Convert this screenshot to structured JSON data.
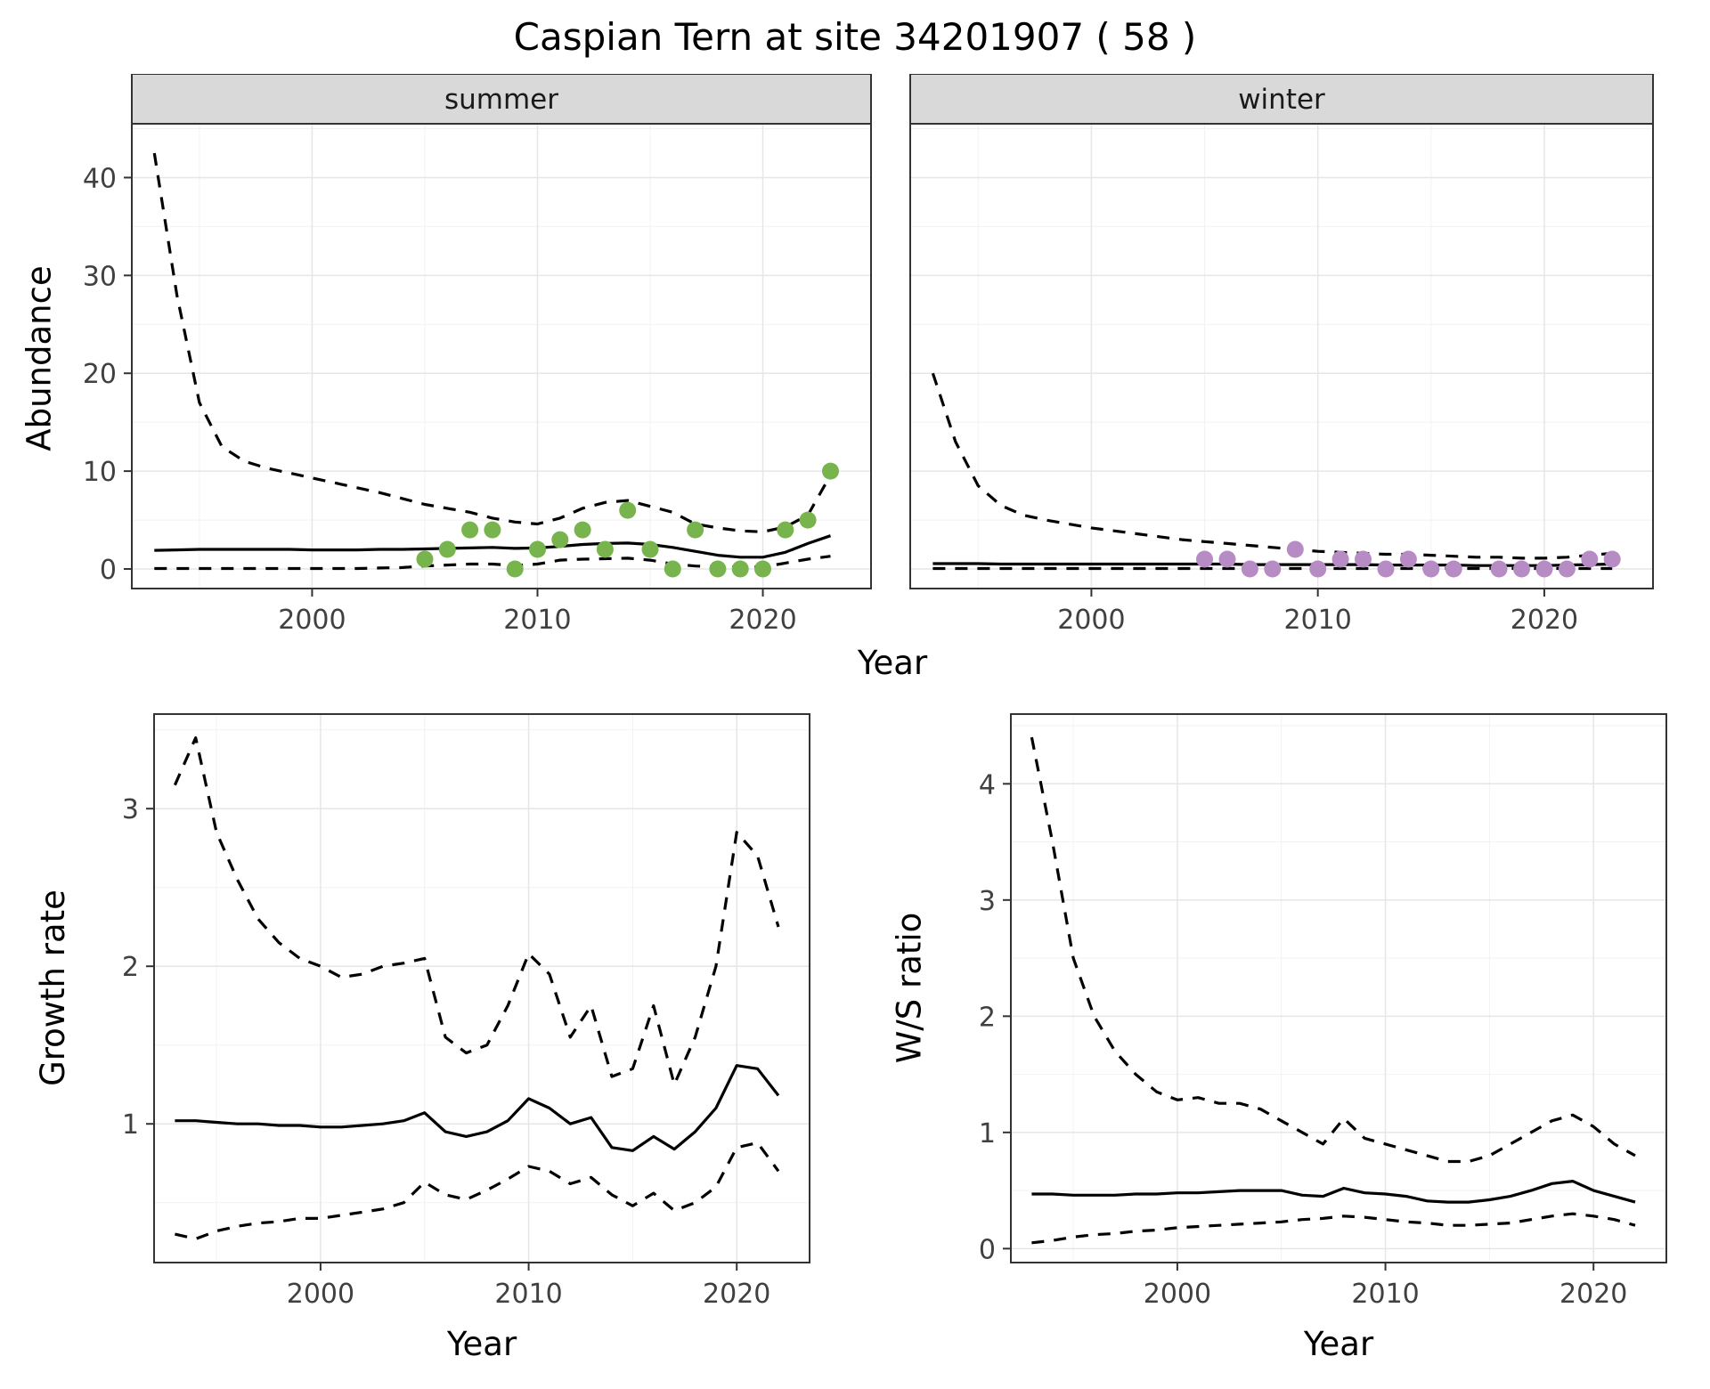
{
  "title": "Caspian Tern at site 34201907 ( 58 )",
  "colors": {
    "summer_points": "#78b44e",
    "winter_points": "#b78bc4",
    "line": "#000000",
    "strip_bg": "#d9d9d9",
    "strip_text": "#1a1a1a",
    "panel_border": "#333333",
    "grid_major": "#e6e6e6",
    "grid_minor": "#f2f2f2",
    "tick_text": "#404040"
  },
  "chart_data": [
    {
      "id": "abundance-summer",
      "type": "line",
      "facet_label": "summer",
      "title": "",
      "xlabel": "Year",
      "ylabel": "Abundance",
      "xlim": [
        1992,
        2024.8
      ],
      "ylim": [
        -2,
        45.5
      ],
      "xticks": [
        2000,
        2010,
        2020
      ],
      "yticks": [
        0,
        10,
        20,
        30,
        40
      ],
      "xminor": [
        1995,
        2005,
        2015
      ],
      "yminor": [
        5,
        15,
        25,
        35,
        45
      ],
      "show_y_axis": true,
      "x": [
        1993,
        1994,
        1995,
        1996,
        1997,
        1998,
        1999,
        2000,
        2001,
        2002,
        2003,
        2004,
        2005,
        2006,
        2007,
        2008,
        2009,
        2010,
        2011,
        2012,
        2013,
        2014,
        2015,
        2016,
        2017,
        2018,
        2019,
        2020,
        2021,
        2022,
        2023
      ],
      "series": [
        {
          "name": "upper_95ci",
          "style": "dashed",
          "y": [
            42.5,
            28,
            17,
            12.5,
            11,
            10.3,
            9.8,
            9.3,
            8.8,
            8.3,
            7.8,
            7.2,
            6.6,
            6.2,
            5.8,
            5.2,
            4.8,
            4.6,
            5.2,
            6.2,
            6.8,
            7,
            6.4,
            5.8,
            4.6,
            4.2,
            3.9,
            3.8,
            4.3,
            5.5,
            9.6
          ]
        },
        {
          "name": "median",
          "style": "solid",
          "y": [
            1.9,
            1.95,
            2,
            2,
            2,
            2,
            2,
            1.95,
            1.95,
            1.95,
            2,
            2,
            2.05,
            2.1,
            2.15,
            2.2,
            2.1,
            2.15,
            2.3,
            2.5,
            2.6,
            2.65,
            2.5,
            2.2,
            1.8,
            1.4,
            1.2,
            1.2,
            1.7,
            2.6,
            3.4
          ]
        },
        {
          "name": "lower_95ci",
          "style": "dashed",
          "y": [
            0.05,
            0.05,
            0.05,
            0.05,
            0.05,
            0.05,
            0.05,
            0.05,
            0.05,
            0.05,
            0.1,
            0.15,
            0.3,
            0.4,
            0.5,
            0.5,
            0.35,
            0.5,
            0.9,
            1,
            1.05,
            1.1,
            0.9,
            0.5,
            0.3,
            0.2,
            0.2,
            0.2,
            0.6,
            1,
            1.3
          ]
        }
      ],
      "points": {
        "name": "observed_counts",
        "color_key": "summer_points",
        "x": [
          2005,
          2006,
          2007,
          2008,
          2009,
          2010,
          2011,
          2012,
          2013,
          2014,
          2015,
          2016,
          2017,
          2018,
          2019,
          2020,
          2021,
          2022,
          2023
        ],
        "y": [
          1,
          2,
          4,
          4,
          0,
          2,
          3,
          4,
          2,
          6,
          2,
          0,
          4,
          0,
          0,
          0,
          4,
          5,
          10
        ]
      }
    },
    {
      "id": "abundance-winter",
      "type": "line",
      "facet_label": "winter",
      "title": "",
      "xlabel": "Year",
      "ylabel": "Abundance",
      "xlim": [
        1992,
        2024.8
      ],
      "ylim": [
        -2,
        45.5
      ],
      "xticks": [
        2000,
        2010,
        2020
      ],
      "yticks": [
        0,
        10,
        20,
        30,
        40
      ],
      "xminor": [
        1995,
        2005,
        2015
      ],
      "yminor": [
        5,
        15,
        25,
        35,
        45
      ],
      "show_y_axis": false,
      "x": [
        1993,
        1994,
        1995,
        1996,
        1997,
        1998,
        1999,
        2000,
        2001,
        2002,
        2003,
        2004,
        2005,
        2006,
        2007,
        2008,
        2009,
        2010,
        2011,
        2012,
        2013,
        2014,
        2015,
        2016,
        2017,
        2018,
        2019,
        2020,
        2021,
        2022,
        2023
      ],
      "series": [
        {
          "name": "upper_95ci",
          "style": "dashed",
          "y": [
            20,
            13,
            8.5,
            6.5,
            5.5,
            5,
            4.6,
            4.2,
            3.9,
            3.6,
            3.3,
            3,
            2.8,
            2.6,
            2.4,
            2.2,
            2,
            1.8,
            1.7,
            1.6,
            1.5,
            1.5,
            1.4,
            1.3,
            1.2,
            1.2,
            1.1,
            1.1,
            1.2,
            1.4,
            1.6
          ]
        },
        {
          "name": "median",
          "style": "solid",
          "y": [
            0.55,
            0.55,
            0.55,
            0.5,
            0.5,
            0.5,
            0.5,
            0.5,
            0.5,
            0.5,
            0.5,
            0.5,
            0.5,
            0.5,
            0.45,
            0.45,
            0.45,
            0.45,
            0.45,
            0.45,
            0.4,
            0.4,
            0.4,
            0.4,
            0.35,
            0.35,
            0.35,
            0.35,
            0.4,
            0.45,
            0.5
          ]
        },
        {
          "name": "lower_95ci",
          "style": "dashed",
          "y": [
            0.05,
            0.05,
            0.05,
            0.05,
            0.05,
            0.05,
            0.05,
            0.05,
            0.05,
            0.05,
            0.05,
            0.05,
            0.05,
            0.05,
            0.05,
            0.05,
            0.05,
            0.05,
            0.05,
            0.05,
            0.05,
            0.05,
            0.05,
            0.05,
            0.05,
            0.05,
            0.05,
            0.05,
            0.05,
            0.05,
            0.05
          ]
        }
      ],
      "points": {
        "name": "observed_counts",
        "color_key": "winter_points",
        "x": [
          2005,
          2006,
          2007,
          2008,
          2009,
          2010,
          2011,
          2012,
          2013,
          2014,
          2015,
          2016,
          2018,
          2019,
          2020,
          2021,
          2022,
          2023
        ],
        "y": [
          1,
          1,
          0,
          0,
          2,
          0,
          1,
          1,
          0,
          1,
          0,
          0,
          0,
          0,
          0,
          0,
          1,
          1
        ]
      }
    },
    {
      "id": "growth-rate",
      "type": "line",
      "facet_label": "",
      "title": "",
      "xlabel": "Year",
      "ylabel": "Growth rate",
      "xlim": [
        1992,
        2023.5
      ],
      "ylim": [
        0.12,
        3.6
      ],
      "xticks": [
        2000,
        2010,
        2020
      ],
      "yticks": [
        1,
        2,
        3
      ],
      "xminor": [
        1995,
        2005,
        2015
      ],
      "yminor": [
        0.5,
        1.5,
        2.5,
        3.5
      ],
      "show_y_axis": true,
      "x": [
        1993,
        1994,
        1995,
        1996,
        1997,
        1998,
        1999,
        2000,
        2001,
        2002,
        2003,
        2004,
        2005,
        2006,
        2007,
        2008,
        2009,
        2010,
        2011,
        2012,
        2013,
        2014,
        2015,
        2016,
        2017,
        2018,
        2019,
        2020,
        2021,
        2022
      ],
      "series": [
        {
          "name": "upper_95ci",
          "style": "dashed",
          "y": [
            3.15,
            3.45,
            2.85,
            2.55,
            2.3,
            2.15,
            2.05,
            2,
            1.93,
            1.95,
            2,
            2.02,
            2.05,
            1.55,
            1.45,
            1.5,
            1.75,
            2.08,
            1.95,
            1.55,
            1.75,
            1.3,
            1.35,
            1.75,
            1.25,
            1.55,
            2,
            2.85,
            2.7,
            2.25
          ]
        },
        {
          "name": "median",
          "style": "solid",
          "y": [
            1.02,
            1.02,
            1.01,
            1,
            1,
            0.99,
            0.99,
            0.98,
            0.98,
            0.99,
            1,
            1.02,
            1.07,
            0.95,
            0.92,
            0.95,
            1.02,
            1.16,
            1.1,
            1,
            1.04,
            0.85,
            0.83,
            0.92,
            0.84,
            0.95,
            1.1,
            1.37,
            1.35,
            1.18
          ]
        },
        {
          "name": "lower_95ci",
          "style": "dashed",
          "y": [
            0.3,
            0.27,
            0.32,
            0.35,
            0.37,
            0.38,
            0.4,
            0.4,
            0.42,
            0.44,
            0.46,
            0.5,
            0.63,
            0.55,
            0.52,
            0.58,
            0.65,
            0.73,
            0.7,
            0.62,
            0.66,
            0.55,
            0.48,
            0.56,
            0.45,
            0.5,
            0.6,
            0.85,
            0.88,
            0.7
          ]
        }
      ]
    },
    {
      "id": "ws-ratio",
      "type": "line",
      "facet_label": "",
      "title": "",
      "xlabel": "Year",
      "ylabel": "W/S ratio",
      "xlim": [
        1992,
        2023.5
      ],
      "ylim": [
        -0.12,
        4.6
      ],
      "xticks": [
        2000,
        2010,
        2020
      ],
      "yticks": [
        0,
        1,
        2,
        3,
        4
      ],
      "xminor": [
        1995,
        2005,
        2015
      ],
      "yminor": [
        0.5,
        1.5,
        2.5,
        3.5,
        4.5
      ],
      "show_y_axis": true,
      "x": [
        1993,
        1994,
        1995,
        1996,
        1997,
        1998,
        1999,
        2000,
        2001,
        2002,
        2003,
        2004,
        2005,
        2006,
        2007,
        2008,
        2009,
        2010,
        2011,
        2012,
        2013,
        2014,
        2015,
        2016,
        2017,
        2018,
        2019,
        2020,
        2021,
        2022
      ],
      "series": [
        {
          "name": "upper_95ci",
          "style": "dashed",
          "y": [
            4.4,
            3.5,
            2.5,
            2,
            1.7,
            1.5,
            1.35,
            1.28,
            1.3,
            1.25,
            1.25,
            1.2,
            1.1,
            1,
            0.9,
            1.12,
            0.95,
            0.9,
            0.85,
            0.8,
            0.75,
            0.75,
            0.8,
            0.9,
            1,
            1.1,
            1.15,
            1.05,
            0.9,
            0.8
          ]
        },
        {
          "name": "median",
          "style": "solid",
          "y": [
            0.47,
            0.47,
            0.46,
            0.46,
            0.46,
            0.47,
            0.47,
            0.48,
            0.48,
            0.49,
            0.5,
            0.5,
            0.5,
            0.46,
            0.45,
            0.52,
            0.48,
            0.47,
            0.45,
            0.41,
            0.4,
            0.4,
            0.42,
            0.45,
            0.5,
            0.56,
            0.58,
            0.5,
            0.45,
            0.4
          ]
        },
        {
          "name": "lower_95ci",
          "style": "dashed",
          "y": [
            0.05,
            0.07,
            0.1,
            0.12,
            0.13,
            0.15,
            0.16,
            0.18,
            0.19,
            0.2,
            0.21,
            0.22,
            0.23,
            0.25,
            0.26,
            0.28,
            0.27,
            0.25,
            0.23,
            0.22,
            0.2,
            0.2,
            0.21,
            0.22,
            0.25,
            0.28,
            0.3,
            0.28,
            0.25,
            0.2
          ]
        }
      ]
    }
  ]
}
